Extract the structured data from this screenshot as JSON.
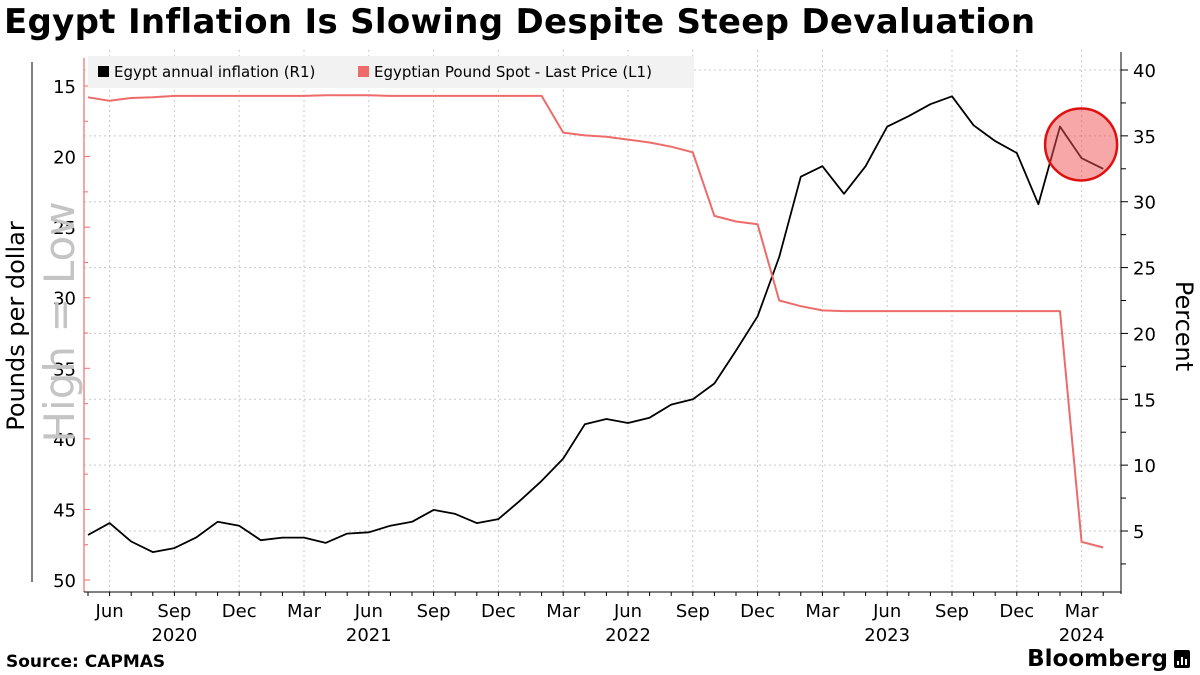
{
  "title": "Egypt Inflation Is Slowing Despite Steep Devaluation",
  "source": "Source: CAPMAS",
  "brand": "Bloomberg",
  "chart_data": {
    "type": "line",
    "x": [
      "2020-05",
      "2020-06",
      "2020-07",
      "2020-08",
      "2020-09",
      "2020-10",
      "2020-11",
      "2020-12",
      "2021-01",
      "2021-02",
      "2021-03",
      "2021-04",
      "2021-05",
      "2021-06",
      "2021-07",
      "2021-08",
      "2021-09",
      "2021-10",
      "2021-11",
      "2021-12",
      "2022-01",
      "2022-02",
      "2022-03",
      "2022-04",
      "2022-05",
      "2022-06",
      "2022-07",
      "2022-08",
      "2022-09",
      "2022-10",
      "2022-11",
      "2022-12",
      "2023-01",
      "2023-02",
      "2023-03",
      "2023-04",
      "2023-05",
      "2023-06",
      "2023-07",
      "2023-08",
      "2023-09",
      "2023-10",
      "2023-11",
      "2023-12",
      "2024-01",
      "2024-02",
      "2024-03",
      "2024-04"
    ],
    "series": [
      {
        "name": "Egypt annual inflation (R1)",
        "axis": "right",
        "color": "#000000",
        "values": [
          4.7,
          5.6,
          4.2,
          3.4,
          3.7,
          4.5,
          5.7,
          5.4,
          4.3,
          4.5,
          4.5,
          4.1,
          4.8,
          4.9,
          5.4,
          5.7,
          6.6,
          6.3,
          5.6,
          5.9,
          7.3,
          8.8,
          10.5,
          13.1,
          13.5,
          13.2,
          13.6,
          14.6,
          15.0,
          16.2,
          18.7,
          21.3,
          25.8,
          31.9,
          32.7,
          30.6,
          32.7,
          35.7,
          36.5,
          37.4,
          38.0,
          35.8,
          34.6,
          33.7,
          29.8,
          35.7,
          33.3,
          32.5
        ]
      },
      {
        "name": "Egyptian Pound Spot - Last Price (L1)",
        "axis": "left",
        "color": "#ee6b6b",
        "values": [
          15.8,
          16.05,
          15.85,
          15.8,
          15.7,
          15.7,
          15.7,
          15.7,
          15.7,
          15.7,
          15.7,
          15.65,
          15.65,
          15.65,
          15.7,
          15.7,
          15.7,
          15.7,
          15.7,
          15.7,
          15.7,
          15.7,
          18.3,
          18.5,
          18.6,
          18.8,
          19.0,
          19.3,
          19.7,
          24.2,
          24.6,
          24.8,
          30.2,
          30.6,
          30.9,
          30.95,
          30.95,
          30.95,
          30.95,
          30.95,
          30.95,
          30.95,
          30.95,
          30.95,
          30.95,
          30.95,
          47.3,
          47.7
        ]
      }
    ],
    "left_axis": {
      "label": "Pounds per dollar",
      "inverted": true,
      "ylim": [
        13.5,
        50.5
      ],
      "ticks": [
        "15",
        "20",
        "25",
        "30",
        "35",
        "40",
        "45",
        "50"
      ]
    },
    "right_axis": {
      "label": "Percent",
      "ylim": [
        2,
        42
      ],
      "ticks": [
        "5",
        "10",
        "15",
        "20",
        "25",
        "30",
        "35",
        "40"
      ]
    },
    "x_ticks": [
      {
        "month": "2020-06",
        "label": "Jun"
      },
      {
        "month": "2020-09",
        "label": "Sep"
      },
      {
        "month": "2020-12",
        "label": "Dec"
      },
      {
        "month": "2021-03",
        "label": "Mar"
      },
      {
        "month": "2021-06",
        "label": "Jun"
      },
      {
        "month": "2021-09",
        "label": "Sep"
      },
      {
        "month": "2021-12",
        "label": "Dec"
      },
      {
        "month": "2022-03",
        "label": "Mar"
      },
      {
        "month": "2022-06",
        "label": "Jun"
      },
      {
        "month": "2022-09",
        "label": "Sep"
      },
      {
        "month": "2022-12",
        "label": "Dec"
      },
      {
        "month": "2023-03",
        "label": "Mar"
      },
      {
        "month": "2023-06",
        "label": "Jun"
      },
      {
        "month": "2023-09",
        "label": "Sep"
      },
      {
        "month": "2023-12",
        "label": "Dec"
      },
      {
        "month": "2024-03",
        "label": "Mar"
      }
    ],
    "year_labels": [
      {
        "month": "2020-09",
        "label": "2020"
      },
      {
        "month": "2021-06",
        "label": "2021"
      },
      {
        "month": "2022-06",
        "label": "2022"
      },
      {
        "month": "2023-06",
        "label": "2023"
      },
      {
        "month": "2024-03",
        "label": "2024"
      }
    ],
    "annotations": [
      {
        "text": "High = Low",
        "type": "watermark"
      },
      {
        "type": "highlight-circle",
        "month": "2024-03",
        "value": 34.5
      }
    ],
    "legend_placement": "top-left",
    "grid": true
  }
}
